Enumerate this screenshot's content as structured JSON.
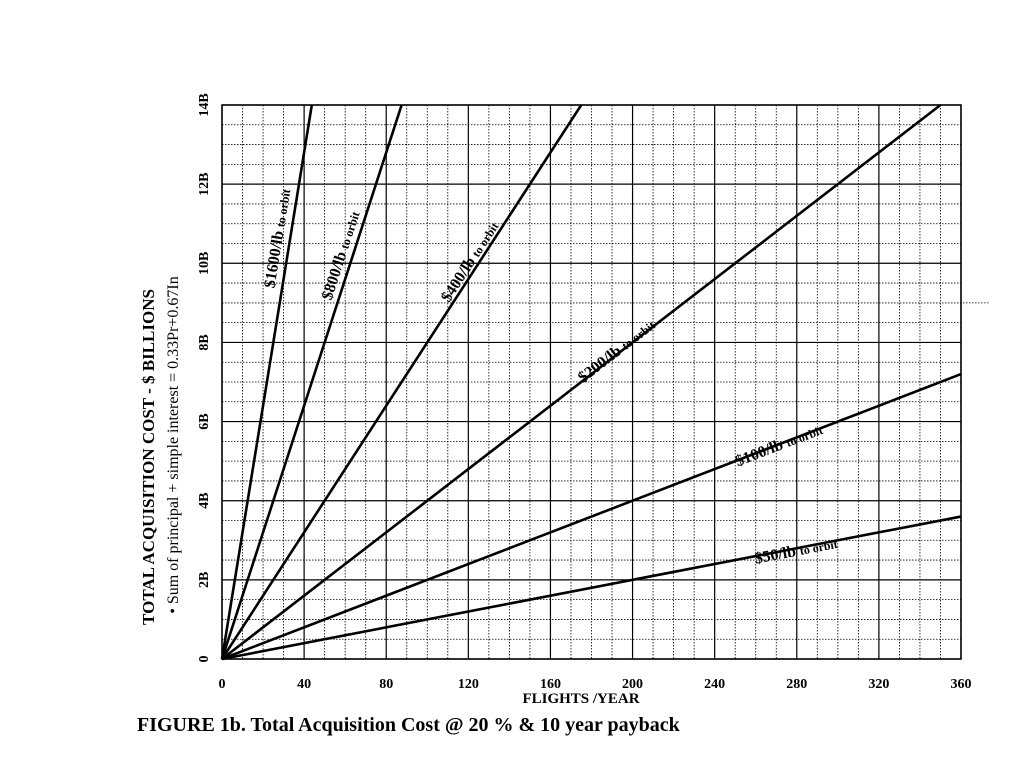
{
  "chart_data": {
    "type": "line",
    "title": "FIGURE 1b. Total Acquisition Cost @ 20 % & 10 year payback",
    "xlabel": "FLIGHTS /YEAR",
    "ylabel": "TOTAL ACQUISITION COST - $ BILLIONS",
    "ylabel_sub": "• Sum of principal + simple interest = 0.33Pr+0.67In",
    "xlim": [
      0,
      360
    ],
    "ylim": [
      0,
      14
    ],
    "x_ticks": [
      0,
      40,
      80,
      120,
      160,
      200,
      240,
      280,
      320,
      360
    ],
    "x_tick_labels": [
      "0",
      "40",
      "80",
      "120",
      "160",
      "200",
      "240",
      "280",
      "320",
      "360"
    ],
    "y_ticks": [
      0,
      2,
      4,
      6,
      8,
      10,
      12,
      14
    ],
    "y_tick_labels": [
      "0",
      "2B",
      "4B",
      "6B",
      "8B",
      "10B",
      "12B",
      "14B"
    ],
    "grid": true,
    "series": [
      {
        "name": "$50/lb",
        "suffix": "to orbit",
        "x": [
          0,
          360
        ],
        "y": [
          0,
          3.6
        ]
      },
      {
        "name": "$100/lb",
        "suffix": "to orbit",
        "x": [
          0,
          360
        ],
        "y": [
          0,
          7.2
        ]
      },
      {
        "name": "$200/lb",
        "suffix": "to orbit",
        "x": [
          0,
          350
        ],
        "y": [
          0,
          14
        ]
      },
      {
        "name": "$400/lb",
        "suffix": "to orbit",
        "x": [
          0,
          175
        ],
        "y": [
          0,
          14
        ]
      },
      {
        "name": "$800/lb",
        "suffix": "to orbit",
        "x": [
          0,
          87.5
        ],
        "y": [
          0,
          14
        ]
      },
      {
        "name": "$1600/lb",
        "suffix": "to orbit",
        "x": [
          0,
          43.75
        ],
        "y": [
          0,
          14
        ]
      }
    ]
  }
}
